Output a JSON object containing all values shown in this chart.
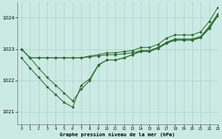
{
  "title": "Graphe pression niveau de la mer (hPa)",
  "bg_color": "#cceae4",
  "grid_color": "#aacccc",
  "line_color": "#2d6e2d",
  "xlim": [
    -0.5,
    23
  ],
  "ylim": [
    1020.6,
    1024.5
  ],
  "xticks": [
    0,
    1,
    2,
    3,
    4,
    5,
    6,
    7,
    8,
    9,
    10,
    11,
    12,
    13,
    14,
    15,
    16,
    17,
    18,
    19,
    20,
    21,
    22,
    23
  ],
  "yticks": [
    1021,
    1022,
    1023,
    1024
  ],
  "series": [
    [
      1023.0,
      1022.72,
      1022.72,
      1022.72,
      1022.72,
      1022.72,
      1022.72,
      1022.72,
      1022.75,
      1022.78,
      1022.82,
      1022.82,
      1022.85,
      1022.88,
      1022.95,
      1022.95,
      1023.05,
      1023.2,
      1023.3,
      1023.3,
      1023.3,
      1023.38,
      1023.68,
      1024.08
    ],
    [
      1023.0,
      1022.72,
      1022.4,
      1022.1,
      1021.85,
      1021.6,
      1021.35,
      1021.72,
      1022.0,
      1022.48,
      1022.65,
      1022.65,
      1022.72,
      1022.82,
      1022.95,
      1022.95,
      1023.05,
      1023.22,
      1023.32,
      1023.32,
      1023.32,
      1023.4,
      1023.72,
      1024.12
    ],
    [
      1022.72,
      1022.4,
      1022.1,
      1021.8,
      1021.55,
      1021.3,
      1021.15,
      1021.85,
      1022.05,
      1022.5,
      1022.65,
      1022.65,
      1022.72,
      1022.82,
      1022.92,
      1022.92,
      1023.02,
      1023.18,
      1023.28,
      1023.28,
      1023.28,
      1023.36,
      1023.65,
      1024.05
    ],
    [
      1023.0,
      1022.72,
      1022.72,
      1022.72,
      1022.72,
      1022.72,
      1022.72,
      1022.72,
      1022.78,
      1022.82,
      1022.88,
      1022.88,
      1022.92,
      1022.95,
      1023.05,
      1023.05,
      1023.15,
      1023.35,
      1023.45,
      1023.45,
      1023.45,
      1023.55,
      1023.88,
      1024.32
    ]
  ]
}
